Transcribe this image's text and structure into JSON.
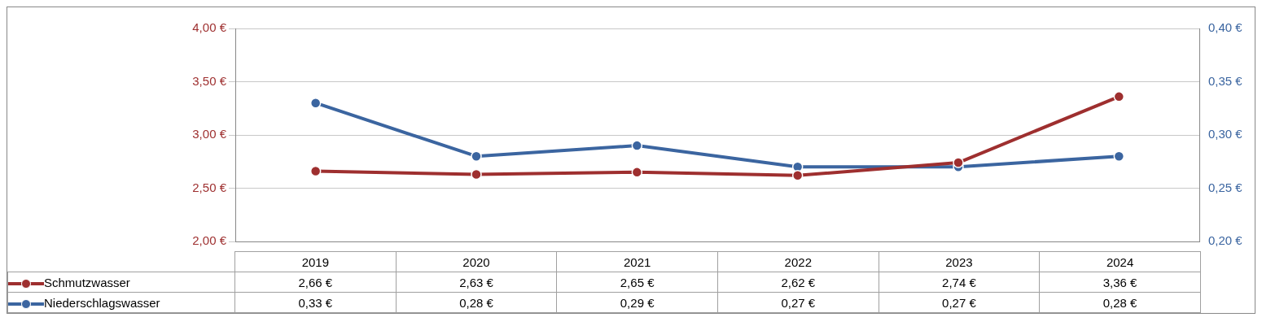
{
  "chart_data": {
    "type": "line",
    "categories": [
      "2019",
      "2020",
      "2021",
      "2022",
      "2023",
      "2024"
    ],
    "series": [
      {
        "name": "Schmutzwasser",
        "color": "#9e2f2f",
        "values": [
          2.66,
          2.63,
          2.65,
          2.62,
          2.74,
          3.36
        ],
        "value_labels": [
          "2,66 €",
          "2,63 €",
          "2,65 €",
          "2,62 €",
          "2,74 €",
          "3,36 €"
        ]
      },
      {
        "name": "Niederschlagswasser",
        "color": "#3b65a0",
        "axis": "y2",
        "values": [
          0.33,
          0.28,
          0.29,
          0.27,
          0.27,
          0.28
        ],
        "value_labels": [
          "0,33 €",
          "0,28 €",
          "0,29 €",
          "0,27 €",
          "0,27 €",
          "0,28 €"
        ]
      }
    ],
    "ylim": [
      2,
      4
    ],
    "yticks": [
      {
        "value": 2,
        "label": "2,00 €"
      },
      {
        "value": 2.5,
        "label": "2,50 €"
      },
      {
        "value": 3,
        "label": "3,00 €"
      },
      {
        "value": 3.5,
        "label": "3,50 €"
      },
      {
        "value": 4,
        "label": "4,00 €"
      }
    ],
    "y2lim": [
      0.2,
      0.4
    ],
    "y2ticks": [
      {
        "value": 0.2,
        "label": "0,20 €"
      },
      {
        "value": 0.25,
        "label": "0,25 €"
      },
      {
        "value": 0.3,
        "label": "0,30 €"
      },
      {
        "value": 0.35,
        "label": "0,35 €"
      },
      {
        "value": 0.4,
        "label": "0,40 €"
      }
    ],
    "grid": "y",
    "legend": "bottom",
    "marker": "circle",
    "line_style": "solid",
    "data_labels": true
  }
}
